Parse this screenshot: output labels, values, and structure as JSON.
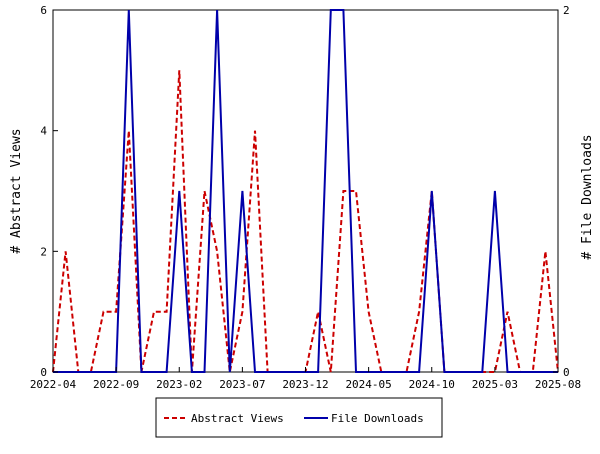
{
  "chart_data": {
    "type": "line",
    "x": [
      "2022-04",
      "2022-05",
      "2022-06",
      "2022-07",
      "2022-08",
      "2022-09",
      "2022-10",
      "2022-11",
      "2022-12",
      "2023-01",
      "2023-02",
      "2023-03",
      "2023-04",
      "2023-05",
      "2023-06",
      "2023-07",
      "2023-08",
      "2023-09",
      "2023-10",
      "2023-11",
      "2023-12",
      "2024-01",
      "2024-02",
      "2024-03",
      "2024-04",
      "2024-05",
      "2024-06",
      "2024-07",
      "2024-08",
      "2024-09",
      "2024-10",
      "2024-11",
      "2024-12",
      "2025-01",
      "2025-02",
      "2025-03",
      "2025-04",
      "2025-05",
      "2025-06",
      "2025-07",
      "2025-08"
    ],
    "x_tick_labels": [
      "2022-04",
      "2022-09",
      "2023-02",
      "2023-07",
      "2023-12",
      "2024-05",
      "2024-10",
      "2025-03",
      "2025-08"
    ],
    "xlim": [
      "2022-04",
      "2025-08"
    ],
    "series": [
      {
        "name": "Abstract Views",
        "axis": "left",
        "color": "#cc0000",
        "style": "dashed",
        "values": [
          0,
          2,
          0,
          0,
          1,
          1,
          4,
          0,
          1,
          1,
          5,
          0,
          3,
          2,
          0,
          1,
          4,
          0,
          0,
          0,
          0,
          1,
          0,
          3,
          3,
          1,
          0,
          0,
          0,
          1,
          3,
          0,
          0,
          0,
          0,
          0,
          1,
          0,
          0,
          2,
          0
        ]
      },
      {
        "name": "File Downloads",
        "axis": "right",
        "color": "#0000aa",
        "style": "solid",
        "values": [
          0,
          0,
          0,
          0,
          0,
          0,
          2,
          0,
          0,
          0,
          1,
          0,
          0,
          2,
          0,
          1,
          0,
          0,
          0,
          0,
          0,
          0,
          2,
          2,
          0,
          0,
          0,
          0,
          0,
          0,
          1,
          0,
          0,
          0,
          0,
          1,
          0,
          0,
          0,
          0,
          0
        ]
      }
    ],
    "ylabel_left": "# Abstract Views",
    "ylabel_right": "# File Downloads",
    "ylim_left": [
      0,
      6
    ],
    "yticks_left": [
      0,
      2,
      4,
      6
    ],
    "ylim_right": [
      0,
      2
    ],
    "yticks_right": [
      0,
      2
    ],
    "legend": {
      "placement": "bottom-center",
      "items": [
        "Abstract Views",
        "File Downloads"
      ]
    },
    "grid": false
  }
}
